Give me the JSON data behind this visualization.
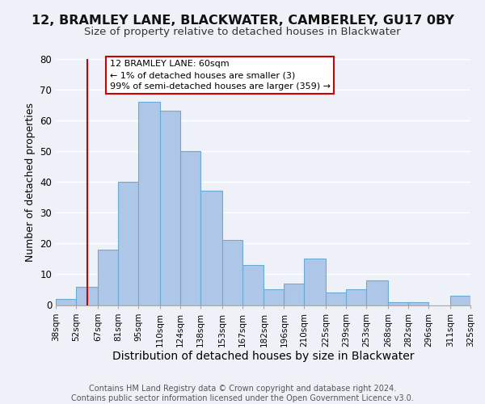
{
  "title1": "12, BRAMLEY LANE, BLACKWATER, CAMBERLEY, GU17 0BY",
  "title2": "Size of property relative to detached houses in Blackwater",
  "xlabel": "Distribution of detached houses by size in Blackwater",
  "ylabel": "Number of detached properties",
  "bar_edges": [
    38,
    52,
    67,
    81,
    95,
    110,
    124,
    138,
    153,
    167,
    182,
    196,
    210,
    225,
    239,
    253,
    268,
    282,
    296,
    311,
    325
  ],
  "bar_heights": [
    2,
    6,
    18,
    40,
    66,
    63,
    50,
    37,
    21,
    13,
    5,
    7,
    15,
    4,
    5,
    8,
    1,
    1,
    0,
    3
  ],
  "tick_labels": [
    "38sqm",
    "52sqm",
    "67sqm",
    "81sqm",
    "95sqm",
    "110sqm",
    "124sqm",
    "138sqm",
    "153sqm",
    "167sqm",
    "182sqm",
    "196sqm",
    "210sqm",
    "225sqm",
    "239sqm",
    "253sqm",
    "268sqm",
    "282sqm",
    "296sqm",
    "311sqm",
    "325sqm"
  ],
  "bar_color": "#aec6e8",
  "bar_edge_color": "#6aaad4",
  "vline_x": 60,
  "vline_color": "#cc0000",
  "ylim": [
    0,
    80
  ],
  "yticks": [
    0,
    10,
    20,
    30,
    40,
    50,
    60,
    70,
    80
  ],
  "annotation_title": "12 BRAMLEY LANE: 60sqm",
  "annotation_line1": "← 1% of detached houses are smaller (3)",
  "annotation_line2": "99% of semi-detached houses are larger (359) →",
  "annotation_box_color": "#ffffff",
  "annotation_box_edge": "#cc0000",
  "footer1": "Contains HM Land Registry data © Crown copyright and database right 2024.",
  "footer2": "Contains public sector information licensed under the Open Government Licence v3.0.",
  "background_color": "#eef2f8",
  "grid_color": "#ffffff",
  "title1_fontsize": 11.5,
  "title2_fontsize": 9.5,
  "xlabel_fontsize": 10,
  "ylabel_fontsize": 9,
  "footer_fontsize": 7,
  "tick_fontsize": 7.5,
  "ytick_fontsize": 8.5
}
